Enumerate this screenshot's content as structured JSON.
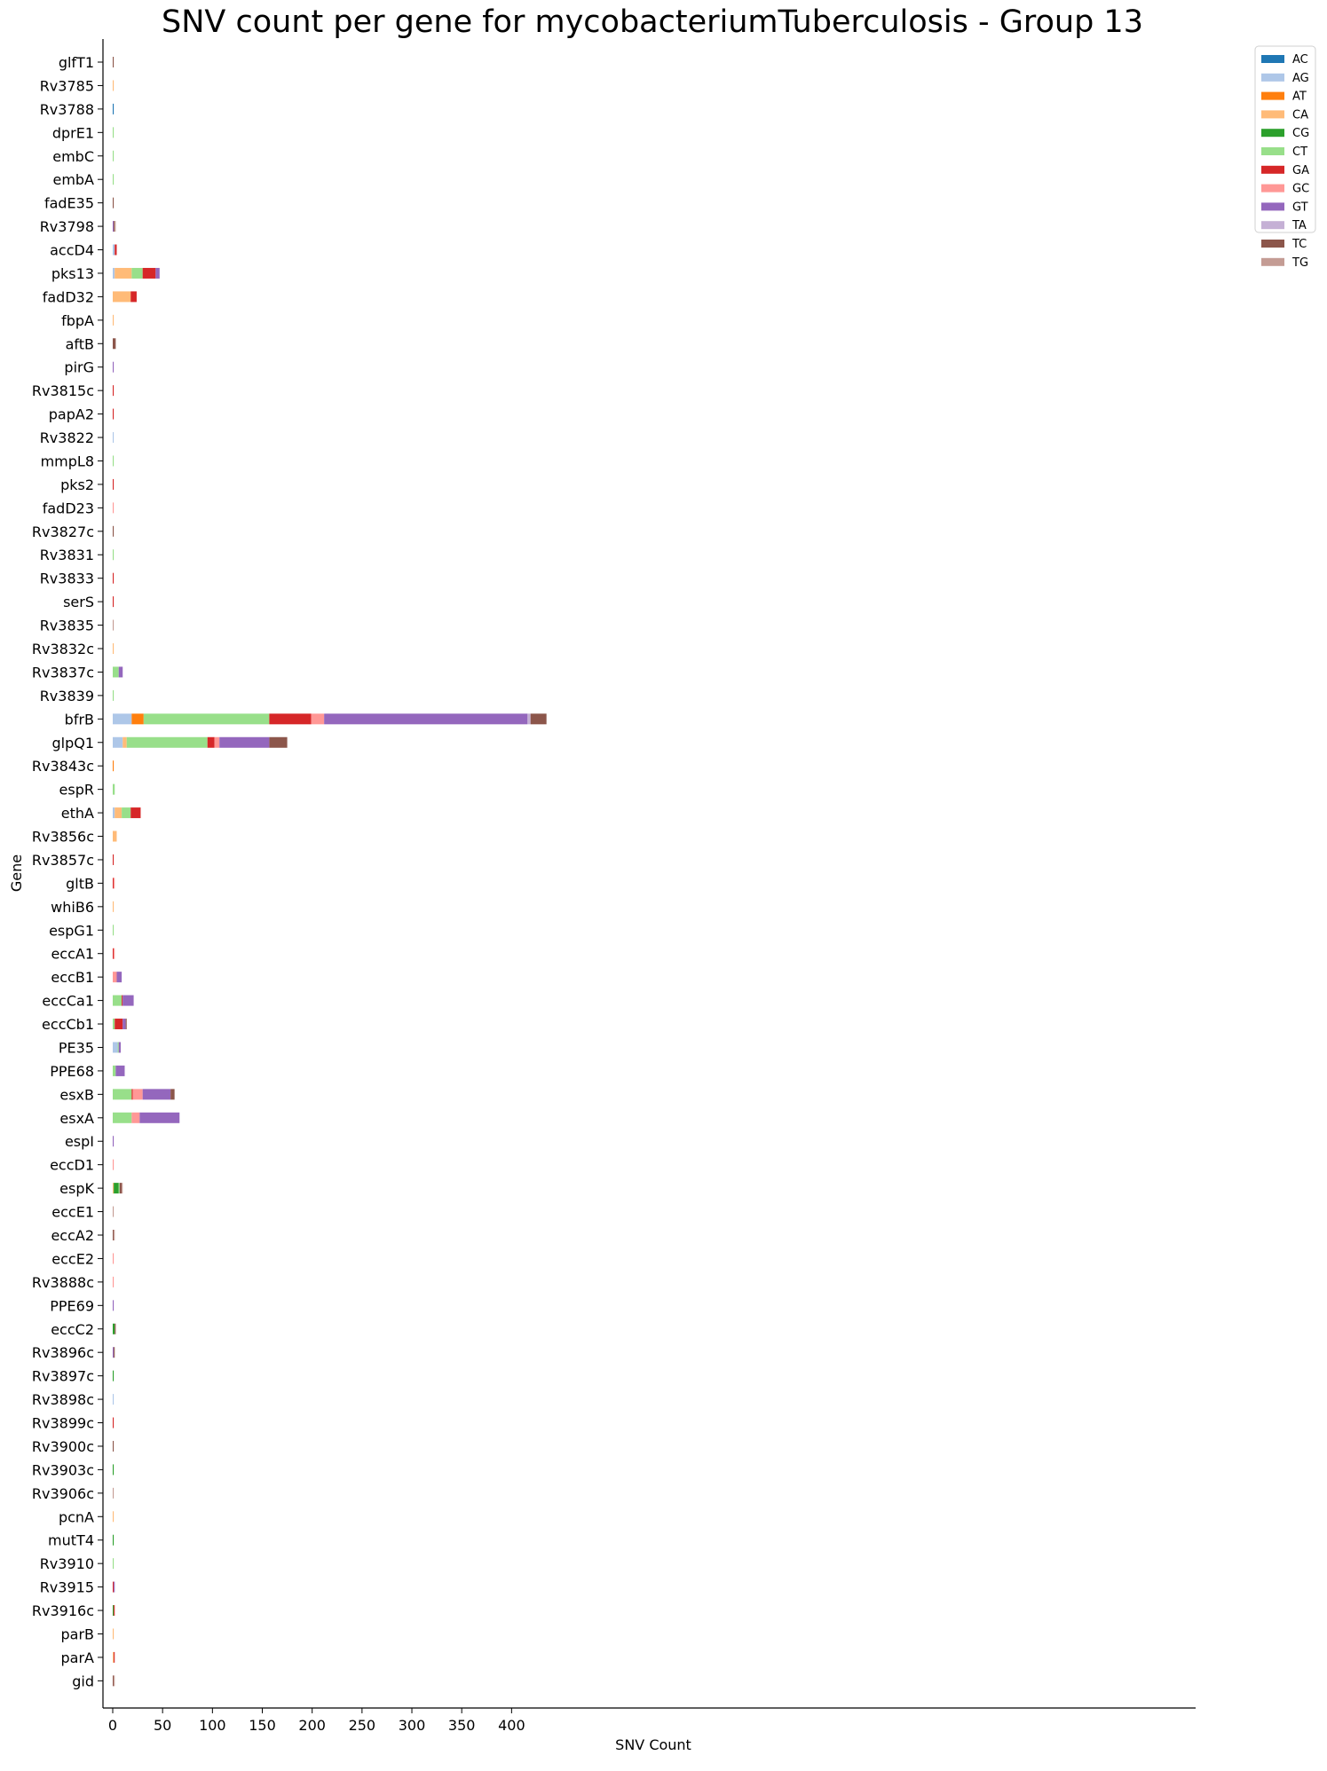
{
  "chart_data": {
    "type": "bar",
    "orientation": "horizontal",
    "stacked": true,
    "title": "SNV count per gene for mycobacteriumTuberculosis - Group 13",
    "xlabel": "SNV Count",
    "ylabel": "Gene",
    "xlim": [
      0,
      435
    ],
    "xticks": [
      0,
      50,
      100,
      150,
      200,
      250,
      300,
      350,
      400
    ],
    "grid": false,
    "legend_position": "top-right",
    "categories": [
      "glfT1",
      "Rv3785",
      "Rv3788",
      "dprE1",
      "embC",
      "embA",
      "fadE35",
      "Rv3798",
      "accD4",
      "pks13",
      "fadD32",
      "fbpA",
      "aftB",
      "pirG",
      "Rv3815c",
      "papA2",
      "Rv3822",
      "mmpL8",
      "pks2",
      "fadD23",
      "Rv3827c",
      "Rv3831",
      "Rv3833",
      "serS",
      "Rv3835",
      "Rv3832c",
      "Rv3837c",
      "Rv3839",
      "bfrB",
      "glpQ1",
      "Rv3843c",
      "espR",
      "ethA",
      "Rv3856c",
      "Rv3857c",
      "gltB",
      "whiB6",
      "espG1",
      "eccA1",
      "eccB1",
      "eccCa1",
      "eccCb1",
      "PE35",
      "PPE68",
      "esxB",
      "esxA",
      "espI",
      "eccD1",
      "espK",
      "eccE1",
      "eccA2",
      "eccE2",
      "Rv3888c",
      "PPE69",
      "eccC2",
      "Rv3896c",
      "Rv3897c",
      "Rv3898c",
      "Rv3899c",
      "Rv3900c",
      "Rv3903c",
      "Rv3906c",
      "pcnA",
      "mutT4",
      "Rv3910",
      "Rv3915",
      "Rv3916c",
      "parB",
      "parA",
      "gid"
    ],
    "series": [
      {
        "name": "AC",
        "color": "#1f77b4",
        "values": [
          0,
          0,
          1,
          0,
          0,
          0,
          0,
          0,
          0,
          0,
          0,
          0,
          0,
          0,
          0,
          0,
          0,
          0,
          0,
          0,
          0,
          0,
          0,
          0,
          0,
          0,
          0,
          0,
          0,
          0,
          0,
          0,
          0,
          0,
          0,
          0,
          0,
          0,
          0,
          0,
          0,
          0,
          0,
          0,
          0,
          0,
          0,
          0,
          0,
          0,
          0,
          0,
          0,
          0,
          0,
          0,
          0,
          0,
          0,
          0,
          0,
          0,
          0,
          0,
          0,
          0,
          0,
          0,
          0,
          0
        ]
      },
      {
        "name": "AG",
        "color": "#aec7e8",
        "values": [
          0,
          0,
          0,
          0,
          0,
          0,
          0,
          0,
          2,
          2,
          0,
          0,
          0,
          0,
          0,
          0,
          1,
          0,
          0,
          0,
          0,
          0,
          0,
          0,
          0,
          0,
          0,
          0,
          19,
          10,
          0,
          0,
          2,
          0,
          0,
          0,
          0,
          0,
          0,
          0,
          0,
          0,
          5,
          0,
          0,
          0,
          0,
          0,
          0,
          0,
          0,
          0,
          0,
          0,
          0,
          0,
          0,
          1,
          0,
          0,
          0,
          0,
          0,
          0,
          0,
          0,
          0,
          0,
          0,
          0
        ]
      },
      {
        "name": "AT",
        "color": "#ff7f0e",
        "values": [
          0,
          0,
          0,
          0,
          0,
          0,
          0,
          0,
          0,
          0,
          0,
          0,
          0,
          0,
          0,
          0,
          0,
          0,
          0,
          0,
          0,
          0,
          0,
          0,
          0,
          0,
          0,
          0,
          12,
          0,
          1,
          0,
          0,
          0,
          0,
          0,
          0,
          0,
          0,
          0,
          0,
          0,
          0,
          0,
          0,
          0,
          0,
          0,
          0,
          0,
          0,
          0,
          0,
          0,
          0,
          0,
          0,
          0,
          0,
          0,
          0,
          0,
          0,
          0,
          0,
          0,
          0,
          0,
          0,
          0
        ]
      },
      {
        "name": "CA",
        "color": "#ffbb78",
        "values": [
          0,
          1,
          0,
          0,
          0,
          0,
          0,
          0,
          0,
          17,
          18,
          1,
          0,
          0,
          0,
          0,
          0,
          0,
          0,
          0,
          0,
          0,
          0,
          0,
          0,
          1,
          0,
          0,
          0,
          4,
          0,
          0,
          7,
          4,
          0,
          0,
          1,
          0,
          0,
          0,
          0,
          0,
          0,
          0,
          0,
          0,
          0,
          0,
          1,
          0,
          0,
          0,
          0,
          0,
          0,
          0,
          0,
          0,
          0,
          0,
          0,
          0,
          1,
          0,
          0,
          0,
          0,
          1,
          1,
          0
        ]
      },
      {
        "name": "CG",
        "color": "#2ca02c",
        "values": [
          0,
          0,
          0,
          0,
          0,
          0,
          0,
          0,
          0,
          0,
          0,
          0,
          0,
          0,
          0,
          0,
          0,
          0,
          0,
          0,
          0,
          0,
          0,
          0,
          0,
          0,
          0,
          0,
          0,
          0,
          0,
          0,
          0,
          0,
          0,
          0,
          0,
          0,
          0,
          0,
          0,
          0,
          0,
          0,
          0,
          0,
          0,
          0,
          5,
          0,
          0,
          0,
          0,
          0,
          2,
          0,
          1,
          0,
          0,
          0,
          1,
          0,
          0,
          1,
          0,
          0,
          1,
          0,
          0,
          0
        ]
      },
      {
        "name": "CT",
        "color": "#98df8a",
        "values": [
          0,
          0,
          0,
          1,
          1,
          1,
          0,
          0,
          0,
          11,
          0,
          0,
          0,
          0,
          0,
          0,
          0,
          1,
          0,
          0,
          0,
          1,
          0,
          0,
          0,
          0,
          6,
          1,
          126,
          81,
          0,
          2,
          9,
          0,
          0,
          0,
          0,
          1,
          0,
          0,
          9,
          2,
          1,
          3,
          19,
          19,
          0,
          0,
          1,
          0,
          0,
          0,
          0,
          0,
          0,
          0,
          0,
          0,
          0,
          0,
          0,
          0,
          0,
          0,
          1,
          0,
          0,
          0,
          0,
          0
        ]
      },
      {
        "name": "GA",
        "color": "#d62728",
        "values": [
          0,
          0,
          0,
          0,
          0,
          0,
          0,
          0,
          2,
          13,
          6,
          0,
          0,
          0,
          1,
          1,
          0,
          0,
          1,
          0,
          0,
          0,
          1,
          1,
          0,
          0,
          0,
          0,
          42,
          7,
          0,
          0,
          10,
          0,
          1,
          1,
          0,
          0,
          1,
          0,
          1,
          8,
          0,
          0,
          1,
          0,
          0,
          0,
          0,
          0,
          0,
          0,
          0,
          0,
          0,
          0,
          0,
          0,
          1,
          0,
          0,
          0,
          0,
          0,
          0,
          1,
          1,
          0,
          1,
          0
        ]
      },
      {
        "name": "GC",
        "color": "#ff9896",
        "values": [
          0,
          0,
          0,
          0,
          0,
          0,
          0,
          0,
          0,
          0,
          0,
          0,
          0,
          0,
          0,
          0,
          0,
          0,
          0,
          1,
          0,
          0,
          0,
          0,
          0,
          0,
          0,
          0,
          13,
          5,
          0,
          0,
          0,
          0,
          0,
          1,
          0,
          0,
          1,
          4,
          0,
          0,
          0,
          0,
          10,
          8,
          0,
          1,
          0,
          0,
          0,
          1,
          1,
          0,
          0,
          0,
          0,
          0,
          0,
          0,
          0,
          0,
          0,
          0,
          0,
          0,
          0,
          0,
          0,
          0
        ]
      },
      {
        "name": "GT",
        "color": "#9467bd",
        "values": [
          0,
          0,
          0,
          0,
          0,
          0,
          0,
          1,
          0,
          4,
          0,
          0,
          0,
          1,
          0,
          0,
          0,
          0,
          0,
          0,
          0,
          0,
          0,
          0,
          0,
          0,
          4,
          0,
          204,
          50,
          0,
          0,
          0,
          0,
          0,
          0,
          0,
          0,
          0,
          5,
          11,
          3,
          2,
          9,
          28,
          40,
          1,
          0,
          0,
          0,
          0,
          0,
          0,
          1,
          0,
          1,
          0,
          0,
          0,
          0,
          0,
          0,
          0,
          0,
          0,
          1,
          0,
          0,
          0,
          0
        ]
      },
      {
        "name": "TA",
        "color": "#c5b0d5",
        "values": [
          0,
          0,
          0,
          0,
          0,
          0,
          0,
          0,
          0,
          0,
          0,
          0,
          0,
          0,
          0,
          0,
          0,
          0,
          0,
          0,
          0,
          0,
          0,
          0,
          0,
          0,
          0,
          0,
          3,
          0,
          0,
          0,
          0,
          0,
          0,
          0,
          0,
          0,
          0,
          0,
          0,
          0,
          0,
          0,
          0,
          0,
          0,
          0,
          0,
          0,
          0,
          0,
          0,
          0,
          0,
          0,
          0,
          0,
          0,
          0,
          0,
          0,
          0,
          0,
          0,
          0,
          0,
          0,
          0,
          0
        ]
      },
      {
        "name": "TC",
        "color": "#8c564b",
        "values": [
          1,
          0,
          0,
          0,
          0,
          0,
          1,
          1,
          0,
          0,
          0,
          0,
          3,
          0,
          0,
          0,
          0,
          0,
          0,
          0,
          1,
          0,
          0,
          0,
          0,
          0,
          0,
          0,
          16,
          18,
          0,
          0,
          0,
          0,
          0,
          0,
          0,
          0,
          0,
          0,
          0,
          1,
          0,
          0,
          4,
          0,
          0,
          0,
          2,
          0,
          1,
          0,
          0,
          0,
          1,
          1,
          0,
          0,
          0,
          1,
          0,
          0,
          0,
          0,
          0,
          0,
          0,
          0,
          0,
          1
        ]
      },
      {
        "name": "TG",
        "color": "#c49c94",
        "values": [
          0,
          0,
          0,
          0,
          0,
          0,
          0,
          1,
          0,
          0,
          0,
          0,
          0,
          0,
          0,
          0,
          0,
          0,
          0,
          0,
          0,
          0,
          0,
          0,
          1,
          0,
          0,
          0,
          0,
          0,
          0,
          0,
          0,
          0,
          0,
          0,
          0,
          0,
          0,
          0,
          0,
          0,
          0,
          0,
          0,
          0,
          0,
          0,
          1,
          1,
          1,
          0,
          0,
          0,
          0,
          0,
          0,
          0,
          0,
          0,
          0,
          1,
          0,
          0,
          0,
          0,
          0,
          0,
          0,
          1
        ]
      }
    ]
  }
}
